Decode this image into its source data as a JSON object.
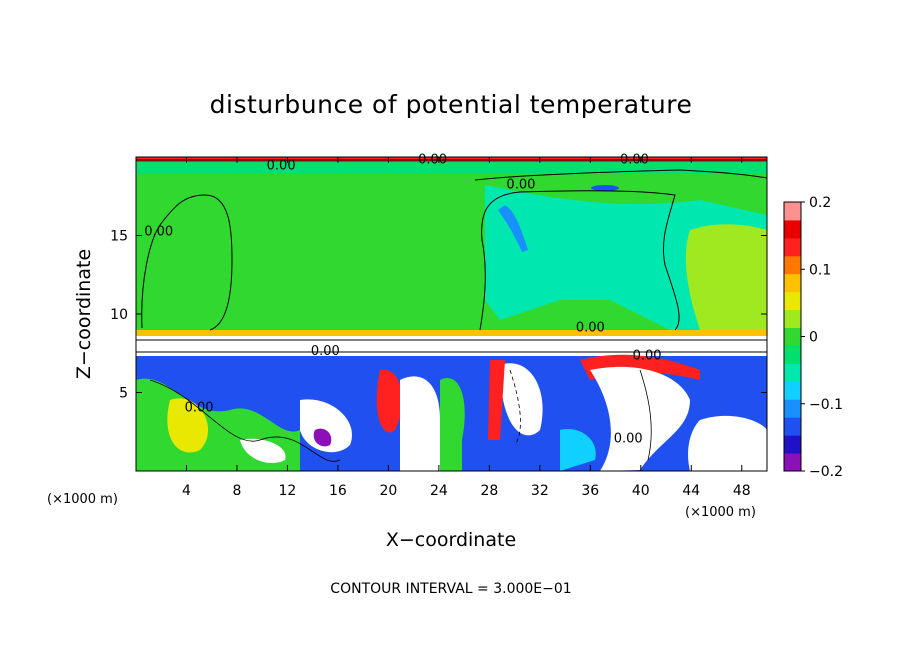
{
  "chart_data": {
    "type": "heatmap",
    "title": "disturbunce of potential temperature",
    "xlabel": "X−coordinate",
    "ylabel": "Z−coordinate",
    "x_unit_left": "(×1000 m)",
    "x_unit_right": "(×1000 m)",
    "xlim": [
      0,
      50
    ],
    "ylim": [
      0,
      20
    ],
    "x_ticks": [
      {
        "value": 4,
        "label": "4"
      },
      {
        "value": 8,
        "label": "8"
      },
      {
        "value": 12,
        "label": "12"
      },
      {
        "value": 16,
        "label": "16"
      },
      {
        "value": 20,
        "label": "20"
      },
      {
        "value": 24,
        "label": "24"
      },
      {
        "value": 28,
        "label": "28"
      },
      {
        "value": 32,
        "label": "32"
      },
      {
        "value": 36,
        "label": "36"
      },
      {
        "value": 40,
        "label": "40"
      },
      {
        "value": 44,
        "label": "44"
      },
      {
        "value": 48,
        "label": "48"
      }
    ],
    "y_ticks": [
      {
        "value": 5,
        "label": "5"
      },
      {
        "value": 10,
        "label": "10"
      },
      {
        "value": 15,
        "label": "15"
      }
    ],
    "colorbar": {
      "range": [
        -0.2,
        0.2
      ],
      "ticks": [
        {
          "value": 0.2,
          "label": "0.2"
        },
        {
          "value": 0.1,
          "label": "0.1"
        },
        {
          "value": 0,
          "label": "0"
        },
        {
          "value": -0.1,
          "label": "−0.1"
        },
        {
          "value": -0.2,
          "label": "−0.2"
        }
      ],
      "colors": [
        "#8b10b8",
        "#2010c8",
        "#2050f0",
        "#1890ff",
        "#10d0ff",
        "#00e8b0",
        "#00e070",
        "#30d830",
        "#a0e820",
        "#e8e800",
        "#ffc000",
        "#ff7800",
        "#ff2020",
        "#e80000",
        "#ff9090"
      ]
    },
    "contour_labels": [
      {
        "x": 1.8,
        "z": 15.0,
        "text": "0.00"
      },
      {
        "x": 11.5,
        "z": 19.2,
        "text": "0.00"
      },
      {
        "x": 23.5,
        "z": 19.6,
        "text": "0.00"
      },
      {
        "x": 30.5,
        "z": 18.0,
        "text": "0.00"
      },
      {
        "x": 39.5,
        "z": 19.6,
        "text": "0.00"
      },
      {
        "x": 36.0,
        "z": 8.9,
        "text": "0.00"
      },
      {
        "x": 40.5,
        "z": 7.1,
        "text": "0.00"
      },
      {
        "x": 15.0,
        "z": 7.4,
        "text": "0.00"
      },
      {
        "x": 5.0,
        "z": 3.8,
        "text": "0.00"
      },
      {
        "x": 39.0,
        "z": 1.8,
        "text": "0.00"
      }
    ],
    "contour_interval_text": "CONTOUR INTERVAL = 3.000E−01",
    "grid": false,
    "legend": "colorbar right"
  }
}
